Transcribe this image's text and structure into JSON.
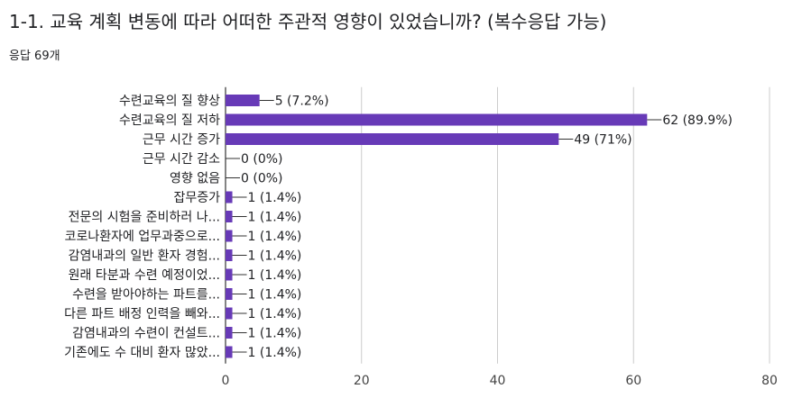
{
  "header": {
    "question_title": "1-1. 교육 계획 변동에 따라 어떠한 주관적 영향이 있었습니까? (복수응답 가능)",
    "response_count": "응답 69개"
  },
  "colors": {
    "bar": "#673ab7",
    "grid": "#cccccc",
    "axis": "#333333",
    "text": "#202124"
  },
  "chart_data": {
    "type": "bar",
    "orientation": "horizontal",
    "categories": [
      "수련교육의 질 향상",
      "수련교육의 질 저하",
      "근무 시간 증가",
      "근무 시간 감소",
      "영향 없음",
      "잡무증가",
      "전문의 시험을 준비하러 나...",
      "코로나환자에 업무과중으로...",
      "감염내과의 일반 환자 경험...",
      "원래 타분과 수련 예정이었...",
      "수련을 받아야하는 파트를...",
      "다른 파트 배정 인력을 빼와...",
      "감염내과의 수련이 컨설트...",
      "기존에도 수 대비 환자 많았..."
    ],
    "values": [
      5,
      62,
      49,
      0,
      0,
      1,
      1,
      1,
      1,
      1,
      1,
      1,
      1,
      1
    ],
    "data_labels": [
      "5 (7.2%)",
      "62 (89.9%)",
      "49 (71%)",
      "0 (0%)",
      "0 (0%)",
      "1 (1.4%)",
      "1 (1.4%)",
      "1 (1.4%)",
      "1 (1.4%)",
      "1 (1.4%)",
      "1 (1.4%)",
      "1 (1.4%)",
      "1 (1.4%)",
      "1 (1.4%)"
    ],
    "xlim": [
      0,
      80
    ],
    "xticks": [
      0,
      20,
      40,
      60,
      80
    ],
    "grid": true,
    "legend": "none"
  }
}
